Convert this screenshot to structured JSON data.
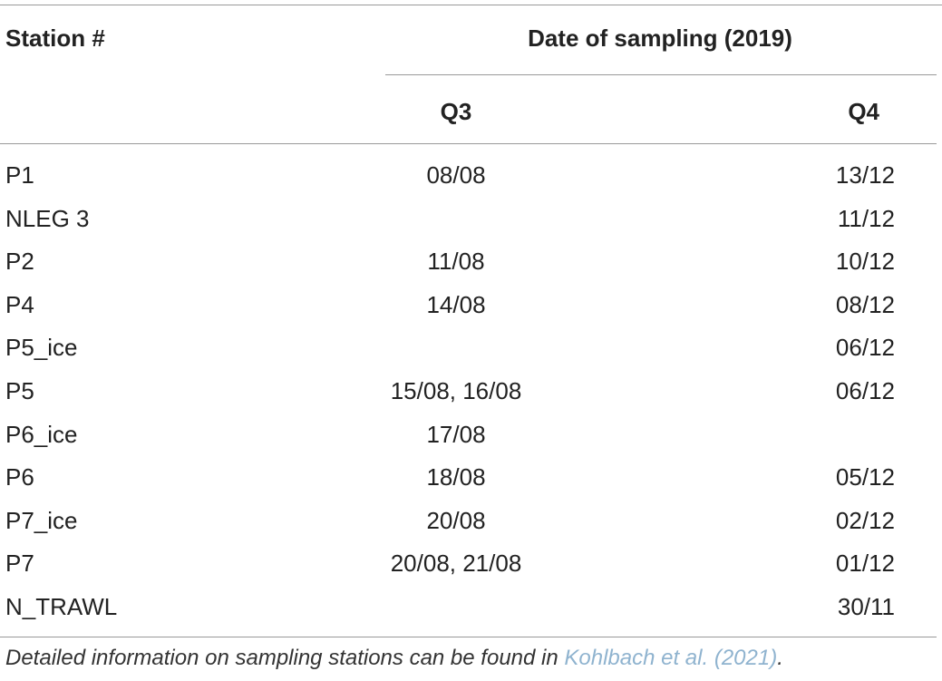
{
  "header": {
    "station": "Station #",
    "date": "Date of sampling (2019)",
    "q3": "Q3",
    "q4": "Q4"
  },
  "table": {
    "rows": [
      [
        "P1",
        "08/08",
        "13/12"
      ],
      [
        "NLEG 3",
        null,
        "11/12"
      ],
      [
        "P2",
        "11/08",
        "10/12"
      ],
      [
        "P4",
        "14/08",
        "08/12"
      ],
      [
        "P5_ice",
        null,
        "06/12"
      ],
      [
        "P5",
        "15/08, 16/08",
        "06/12"
      ],
      [
        "P6_ice",
        "17/08",
        null
      ],
      [
        "P6",
        "18/08",
        "05/12"
      ],
      [
        "P7_ice",
        "20/08",
        "02/12"
      ],
      [
        "P7",
        "20/08, 21/08",
        "01/12"
      ],
      [
        "N_TRAWL",
        null,
        "30/11"
      ]
    ]
  },
  "footnote": {
    "text": "Detailed information on sampling stations can be found in ",
    "link": "Kohlbach et al. (2021)",
    "end": "."
  }
}
